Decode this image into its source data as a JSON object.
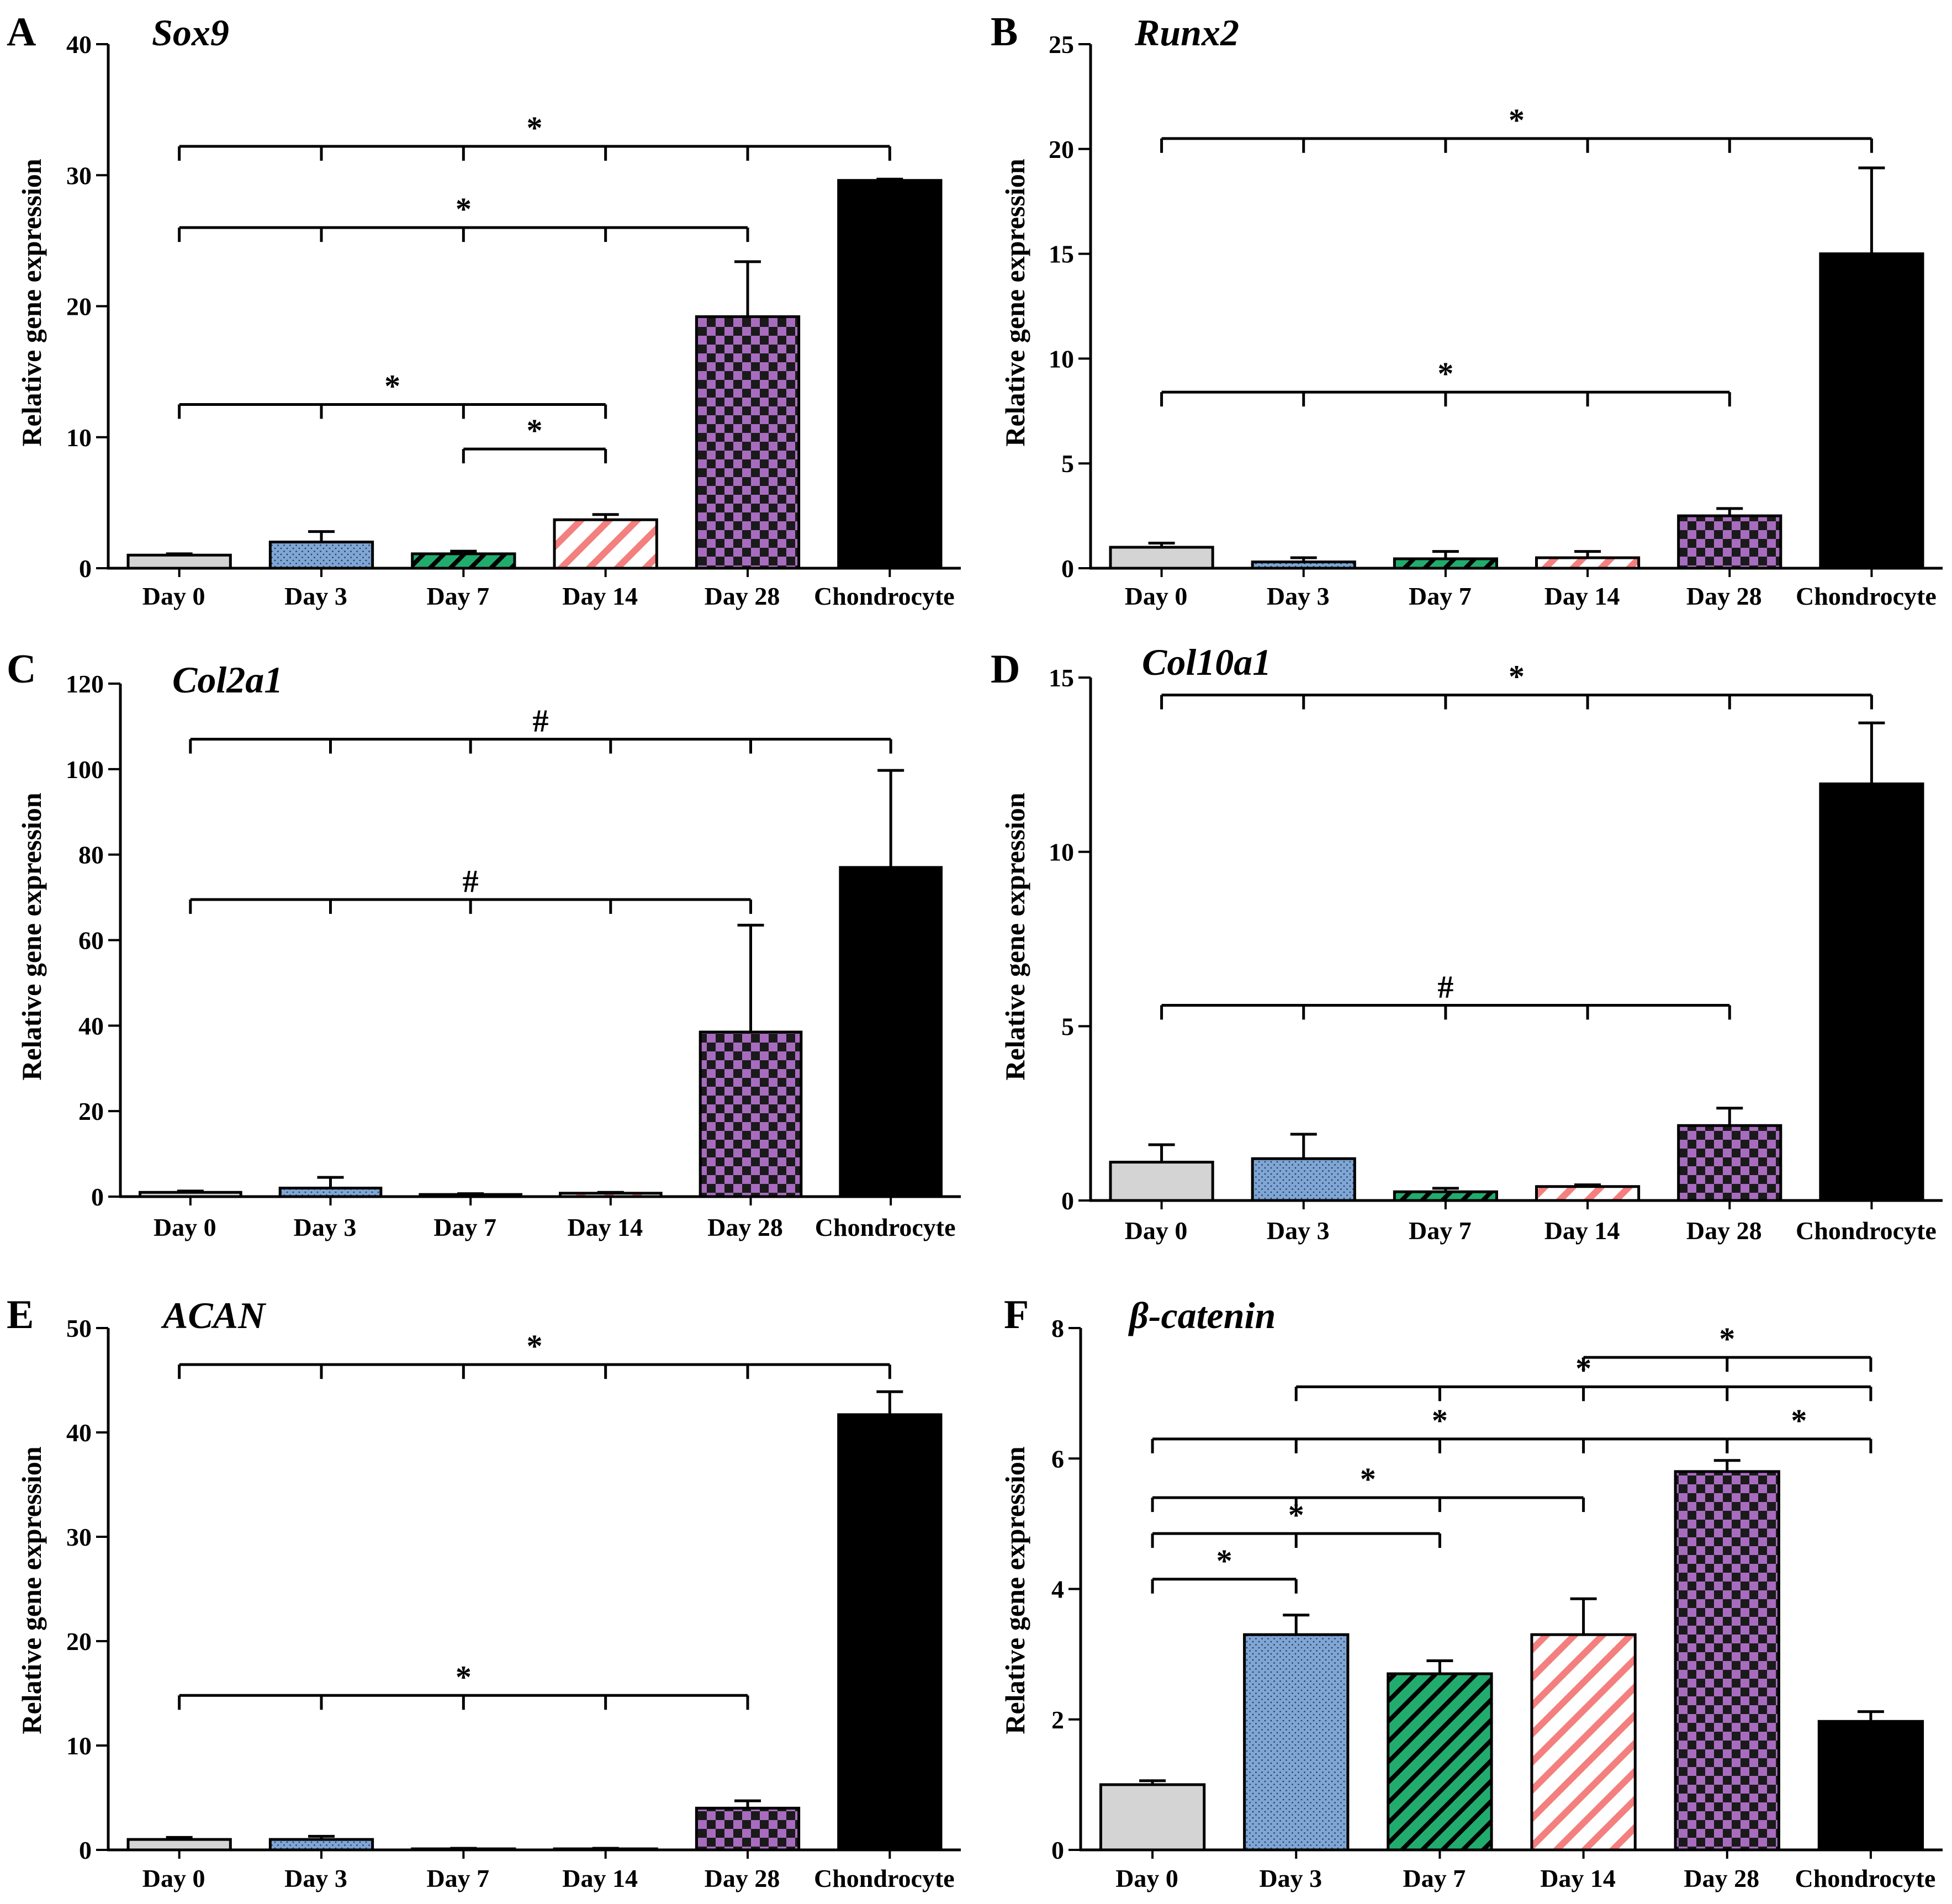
{
  "patterns": [
    "plain",
    "dots",
    "diag",
    "diag",
    "checker",
    "plain"
  ],
  "colors": {
    "day0": "#d4d4d4",
    "day3": "#7fa6d4",
    "day7": "#21ac6e",
    "day14": "#f47f7f",
    "day28": "#a86cbf",
    "chondrocyte": "#000000",
    "stroke": "#000000"
  },
  "chart_data": [
    {
      "panel": "A",
      "type": "bar",
      "title": "Sox9",
      "ylabel": "Relative gene expression",
      "categories": [
        "Day 0",
        "Day 3",
        "Day 7",
        "Day 14",
        "Day 28",
        "Chondrocyte"
      ],
      "values": [
        1.0,
        2.0,
        1.1,
        3.7,
        19.2,
        29.6
      ],
      "errors": [
        0.1,
        0.8,
        0.2,
        0.4,
        4.2,
        0.1
      ],
      "ylim": [
        0,
        40
      ],
      "yticks": [
        0,
        10,
        20,
        30,
        40
      ],
      "sig": [
        {
          "from": 0,
          "to": 5,
          "y": 32.2,
          "label": "*"
        },
        {
          "from": 0,
          "to": 4,
          "y": 26.0,
          "label": "*"
        },
        {
          "from": 0,
          "to": 3,
          "y": 12.5,
          "label": "*"
        },
        {
          "from": 2,
          "to": 3,
          "y": 9.1,
          "label": "*"
        }
      ]
    },
    {
      "panel": "B",
      "type": "bar",
      "title": "Runx2",
      "ylabel": "Relative gene expression",
      "categories": [
        "Day 0",
        "Day 3",
        "Day 7",
        "Day 14",
        "Day 28",
        "Chondrocyte"
      ],
      "values": [
        1.0,
        0.3,
        0.45,
        0.5,
        2.5,
        15.0
      ],
      "errors": [
        0.2,
        0.2,
        0.35,
        0.3,
        0.35,
        4.1
      ],
      "ylim": [
        0,
        25
      ],
      "yticks": [
        0,
        5,
        10,
        15,
        20,
        25
      ],
      "sig": [
        {
          "from": 0,
          "to": 5,
          "y": 20.5,
          "label": "*"
        },
        {
          "from": 0,
          "to": 4,
          "y": 8.4,
          "label": "*"
        }
      ]
    },
    {
      "panel": "C",
      "type": "bar",
      "title": "Col2a1",
      "ylabel": "Relative gene expression",
      "categories": [
        "Day 0",
        "Day 3",
        "Day 7",
        "Day 14",
        "Day 28",
        "Chondrocyte"
      ],
      "values": [
        1.0,
        2.0,
        0.5,
        0.8,
        38.5,
        77.0
      ],
      "errors": [
        0.3,
        2.5,
        0.2,
        0.2,
        25.0,
        22.7
      ],
      "ylim": [
        0,
        120
      ],
      "yticks": [
        0,
        20,
        40,
        60,
        80,
        100,
        120
      ],
      "sig": [
        {
          "from": 0,
          "to": 5,
          "y": 107.0,
          "label": "#"
        },
        {
          "from": 0,
          "to": 4,
          "y": 69.5,
          "label": "#"
        }
      ]
    },
    {
      "panel": "D",
      "type": "bar",
      "title": "Col10a1",
      "ylabel": "Relative gene expression",
      "categories": [
        "Day 0",
        "Day 3",
        "Day 7",
        "Day 14",
        "Day 28",
        "Chondrocyte"
      ],
      "values": [
        1.1,
        1.2,
        0.25,
        0.4,
        2.15,
        11.95
      ],
      "errors": [
        0.5,
        0.7,
        0.1,
        0.05,
        0.5,
        1.75
      ],
      "ylim": [
        0,
        15
      ],
      "yticks": [
        0,
        5,
        10,
        15
      ],
      "sig": [
        {
          "from": 0,
          "to": 5,
          "y": 14.5,
          "label": "*"
        },
        {
          "from": 0,
          "to": 4,
          "y": 5.6,
          "label": "#"
        }
      ]
    },
    {
      "panel": "E",
      "type": "bar",
      "title": "ACAN",
      "ylabel": "Relative gene expression",
      "categories": [
        "Day 0",
        "Day 3",
        "Day 7",
        "Day 14",
        "Day 28",
        "Chondrocyte"
      ],
      "values": [
        1.0,
        1.0,
        0.1,
        0.1,
        4.0,
        41.7
      ],
      "errors": [
        0.2,
        0.3,
        0.05,
        0.05,
        0.7,
        2.2
      ],
      "ylim": [
        0,
        50
      ],
      "yticks": [
        0,
        10,
        20,
        30,
        40,
        50
      ],
      "sig": [
        {
          "from": 0,
          "to": 5,
          "y": 46.5,
          "label": "*"
        },
        {
          "from": 0,
          "to": 4,
          "y": 14.8,
          "label": "*"
        }
      ]
    },
    {
      "panel": "F",
      "type": "bar",
      "title": "β-catenin",
      "ylabel": "Relative gene expression",
      "categories": [
        "Day 0",
        "Day 3",
        "Day 7",
        "Day 14",
        "Day 28",
        "Chondrocyte"
      ],
      "values": [
        1.0,
        3.3,
        2.7,
        3.3,
        5.8,
        1.97
      ],
      "errors": [
        0.06,
        0.3,
        0.2,
        0.55,
        0.17,
        0.15
      ],
      "ylim": [
        0,
        8
      ],
      "yticks": [
        0,
        2,
        4,
        6,
        8
      ],
      "sig": [
        {
          "from": 3,
          "to": 5,
          "y": 7.55,
          "label": "*"
        },
        {
          "from": 1,
          "to": 5,
          "y": 7.1,
          "label": "*"
        },
        {
          "from": 0,
          "to": 4,
          "y": 6.3,
          "label": "*"
        },
        {
          "from": 4,
          "to": 5,
          "y": 6.3,
          "label": "*"
        },
        {
          "from": 0,
          "to": 3,
          "y": 5.4,
          "label": "*"
        },
        {
          "from": 0,
          "to": 2,
          "y": 4.85,
          "label": "*"
        },
        {
          "from": 0,
          "to": 1,
          "y": 4.15,
          "label": "*"
        }
      ]
    }
  ]
}
